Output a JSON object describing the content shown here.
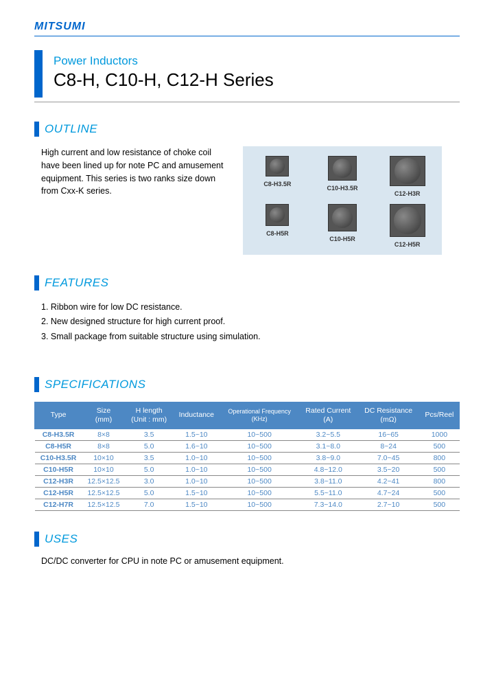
{
  "brand": "MITSUMI",
  "header": {
    "category": "Power Inductors",
    "series": "C8-H, C10-H, C12-H Series"
  },
  "colors": {
    "brand_blue": "#0066cc",
    "light_blue": "#0099dd",
    "gallery_bg": "#d9e6f0",
    "table_header_bg": "#4d88c4",
    "table_text": "#4d88c4"
  },
  "outline": {
    "title": "OUTLINE",
    "text": "High current and low resistance of choke coil have been lined up for note PC and amusement equipment. This series is two ranks size down from Cxx-K series."
  },
  "products": [
    {
      "label": "C8-H3.5R",
      "body_w": 34,
      "body_h": 30,
      "circle": 22
    },
    {
      "label": "C10-H3.5R",
      "body_w": 42,
      "body_h": 36,
      "circle": 28
    },
    {
      "label": "C12-H3R",
      "body_w": 52,
      "body_h": 44,
      "circle": 38
    },
    {
      "label": "C8-H5R",
      "body_w": 34,
      "body_h": 32,
      "circle": 22
    },
    {
      "label": "C10-H5R",
      "body_w": 42,
      "body_h": 40,
      "circle": 30
    },
    {
      "label": "C12-H5R",
      "body_w": 52,
      "body_h": 48,
      "circle": 40
    }
  ],
  "features": {
    "title": "FEATURES",
    "items": [
      "1. Ribbon wire for low DC resistance.",
      "2. New designed structure for high current proof.",
      "3. Small package from suitable structure using simulation."
    ]
  },
  "specifications": {
    "title": "SPECIFICATIONS",
    "columns": [
      "Type",
      "Size (mm)",
      "H length (Unit : mm)",
      "Inductance",
      "Operational Frequency (KHz)",
      "Rated Current (A)",
      "DC Resistance (mΩ)",
      "Pcs/Reel"
    ],
    "rows": [
      [
        "C8-H3.5R",
        "8×8",
        "3.5",
        "1.5~10",
        "10~500",
        "3.2~5.5",
        "16~65",
        "1000"
      ],
      [
        "C8-H5R",
        "8×8",
        "5.0",
        "1.6~10",
        "10~500",
        "3.1~8.0",
        "8~24",
        "500"
      ],
      [
        "C10-H3.5R",
        "10×10",
        "3.5",
        "1.0~10",
        "10~500",
        "3.8~9.0",
        "7.0~45",
        "800"
      ],
      [
        "C10-H5R",
        "10×10",
        "5.0",
        "1.0~10",
        "10~500",
        "4.8~12.0",
        "3.5~20",
        "500"
      ],
      [
        "C12-H3R",
        "12.5×12.5",
        "3.0",
        "1.0~10",
        "10~500",
        "3.8~11.0",
        "4.2~41",
        "800"
      ],
      [
        "C12-H5R",
        "12.5×12.5",
        "5.0",
        "1.5~10",
        "10~500",
        "5.5~11.0",
        "4.7~24",
        "500"
      ],
      [
        "C12-H7R",
        "12.5×12.5",
        "7.0",
        "1.5~10",
        "10~500",
        "7.3~14.0",
        "2.7~10",
        "500"
      ]
    ]
  },
  "uses": {
    "title": "USES",
    "text": "DC/DC converter for CPU in note PC or amusement equipment."
  }
}
